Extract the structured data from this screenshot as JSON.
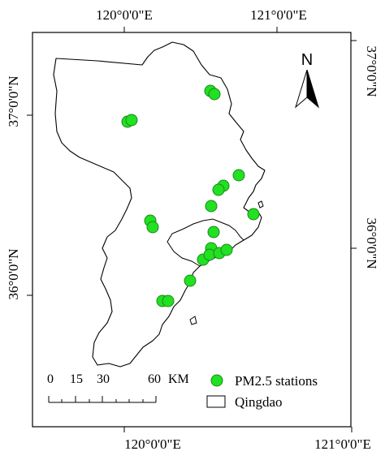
{
  "map": {
    "top_labels": [
      "120°0'0\"E",
      "121°0'0\"E"
    ],
    "bottom_labels": [
      "120°0'0\"E",
      "121°0'0\"E"
    ],
    "left_labels": [
      "37°0'0\"N",
      "36°0'0\"N"
    ],
    "right_labels": [
      "37°0'0\"N",
      "36°0'0\"N"
    ],
    "north_label": "N",
    "scale_ticks": [
      "0",
      "15",
      "30",
      "60"
    ],
    "scale_unit": "KM",
    "legend": [
      {
        "label": "PM2.5 stations",
        "symbol": "green-circle"
      },
      {
        "label": "Qingdao",
        "symbol": "outline-rectangle"
      }
    ],
    "colors": {
      "station": "#22e022",
      "station_stroke": "#1a8a1a",
      "outline": "#000000"
    },
    "stations_count": 23
  }
}
